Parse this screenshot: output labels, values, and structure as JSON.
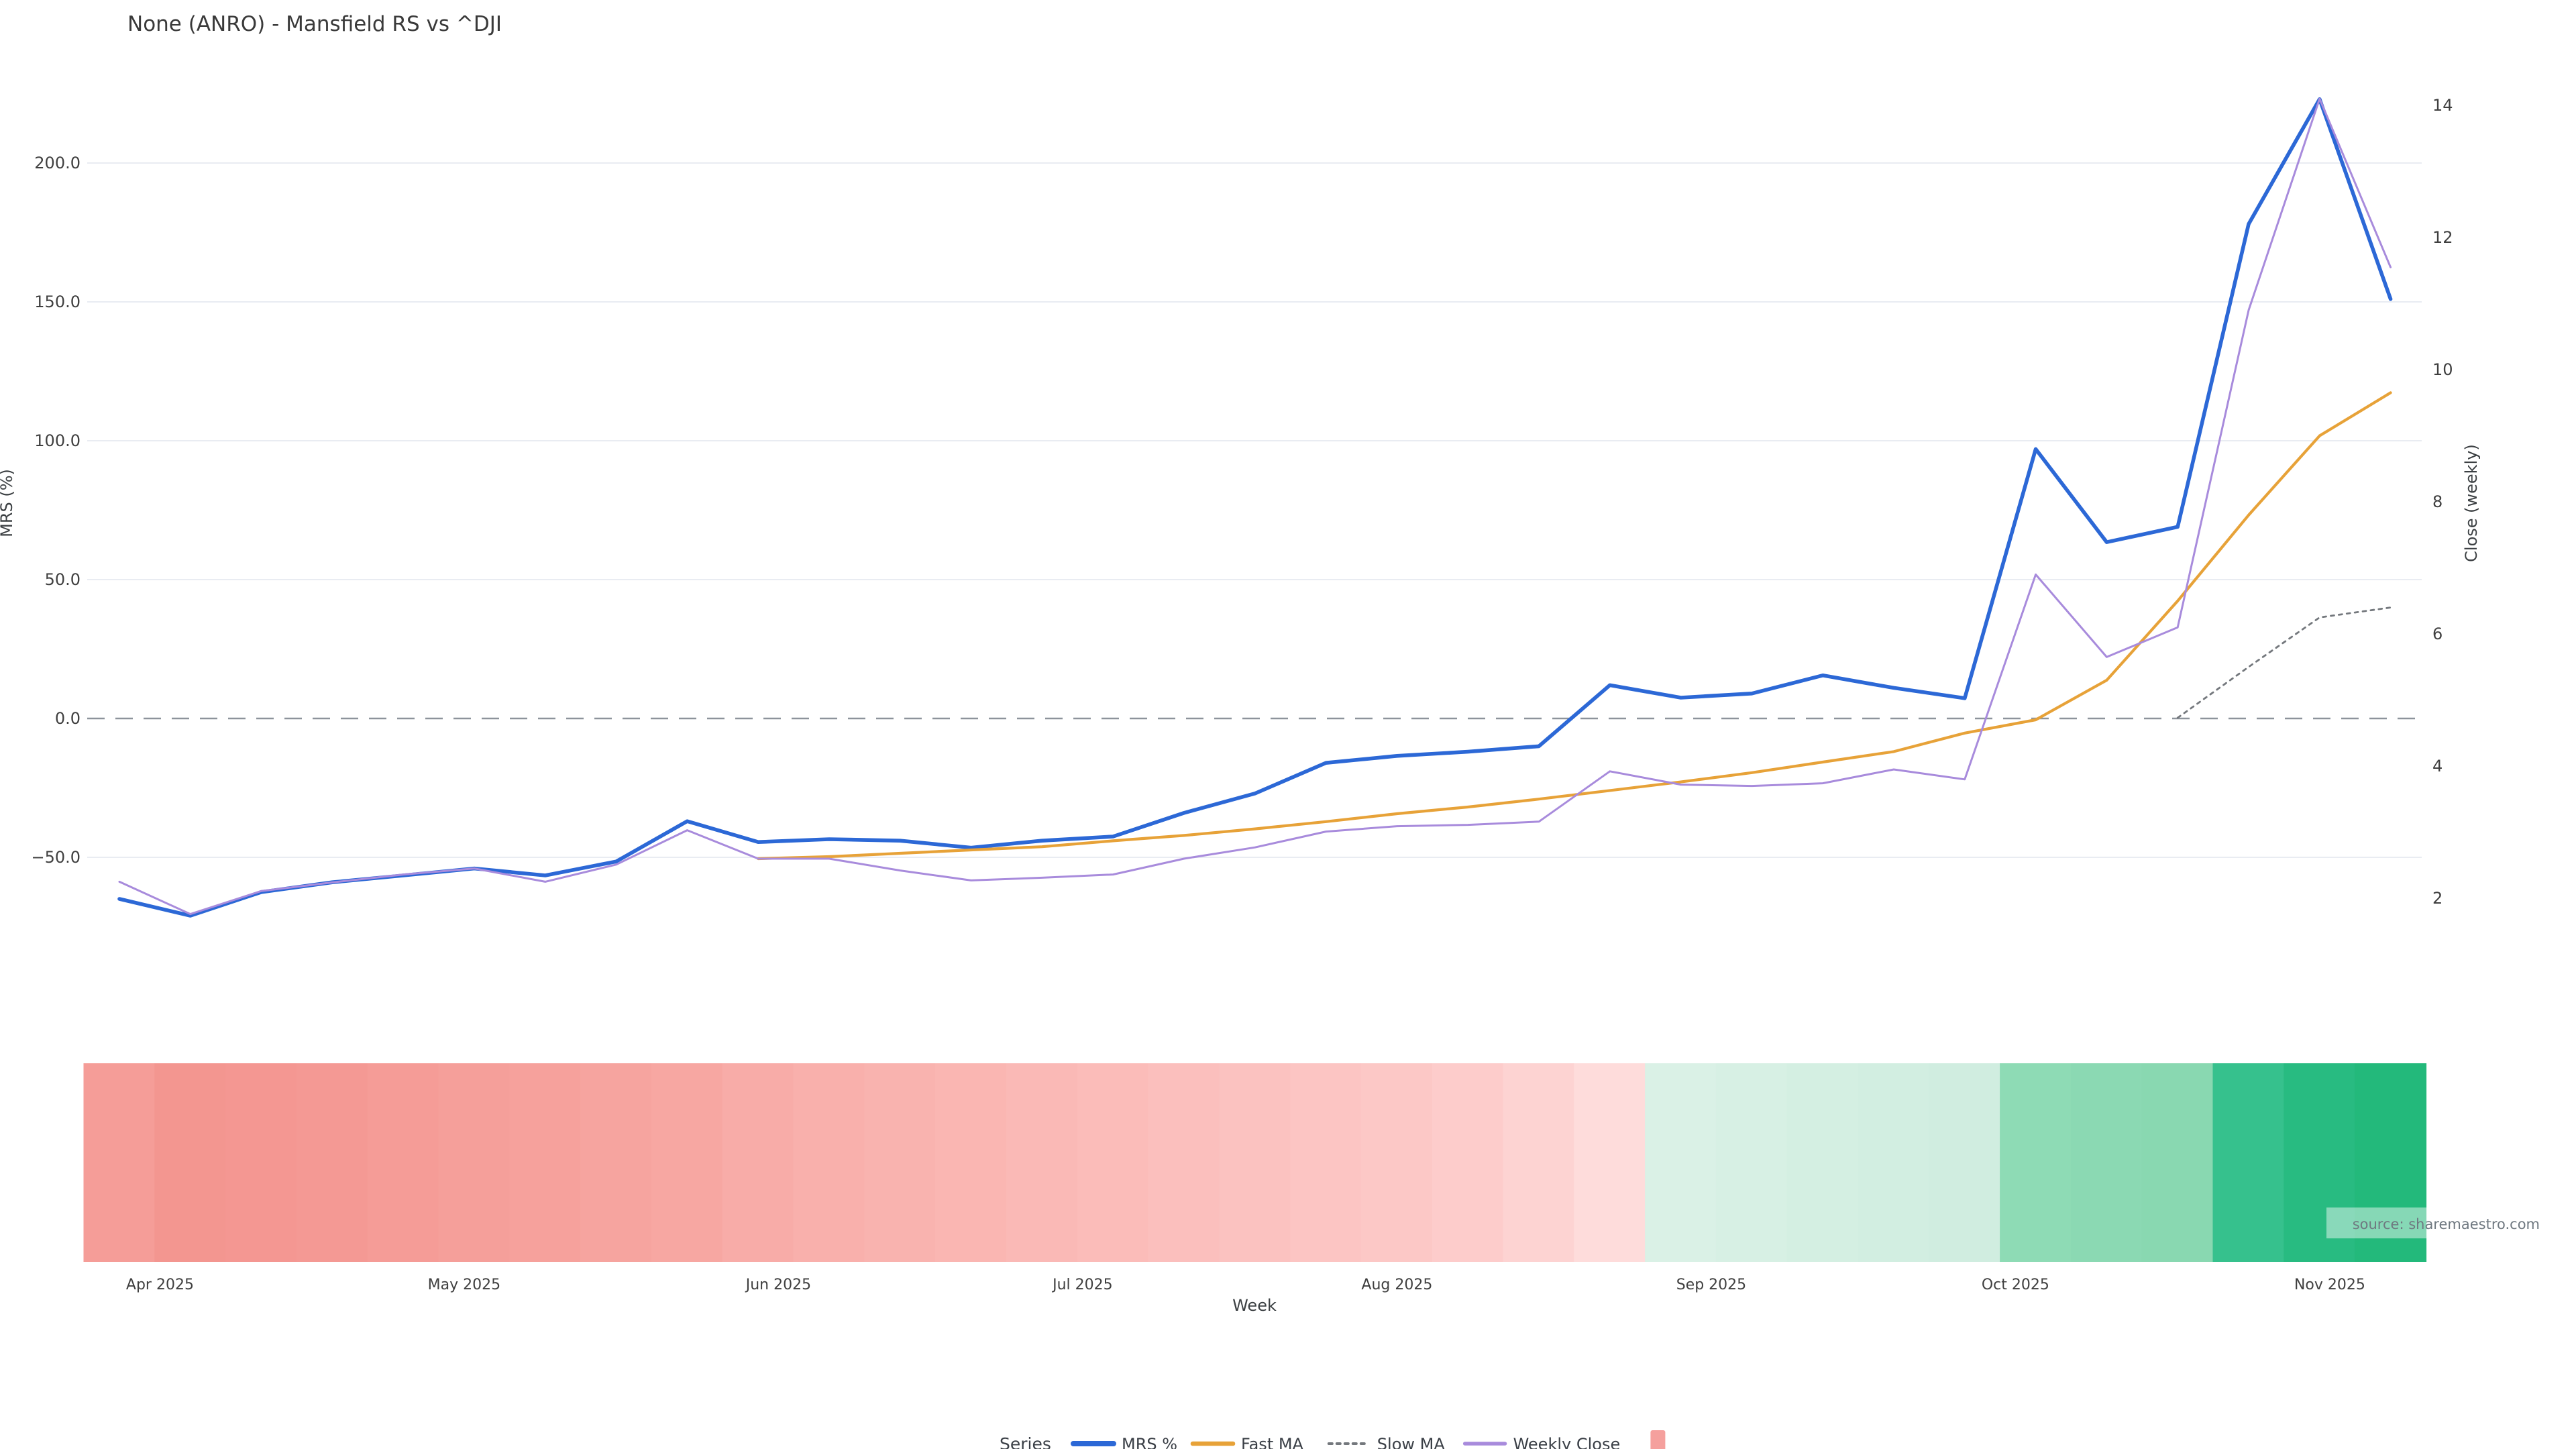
{
  "chart_data": {
    "type": "line",
    "title": "None (ANRO) - Mansfield RS vs ^DJI",
    "xlabel": "Week",
    "watermark": "source: sharemaestro.com",
    "background_color": "#ffffff",
    "gridline_color": "#e9ecf2",
    "zero_line": {
      "value": 0.0,
      "axis": "left",
      "color": "#8d939b",
      "style": "dashed"
    },
    "left_axis": {
      "label": "MRS (%)",
      "range": [
        -80,
        240
      ],
      "ticks": [
        {
          "value": 200,
          "label": "200.0"
        },
        {
          "value": 150,
          "label": "150.0"
        },
        {
          "value": 100,
          "label": "100.0"
        },
        {
          "value": 50,
          "label": "50.0"
        },
        {
          "value": 0,
          "label": "0.0"
        },
        {
          "value": -50,
          "label": "−50.0"
        }
      ]
    },
    "right_axis": {
      "label": "Close (weekly)",
      "range": [
        1.3,
        14.6
      ],
      "ticks": [
        {
          "value": 14,
          "label": "14"
        },
        {
          "value": 12,
          "label": "12"
        },
        {
          "value": 10,
          "label": "10"
        },
        {
          "value": 8,
          "label": "8"
        },
        {
          "value": 6,
          "label": "6"
        },
        {
          "value": 4,
          "label": "4"
        },
        {
          "value": 2,
          "label": "2"
        }
      ]
    },
    "x_dates": [
      "2025-03-28",
      "2025-04-04",
      "2025-04-11",
      "2025-04-18",
      "2025-04-25",
      "2025-05-02",
      "2025-05-09",
      "2025-05-16",
      "2025-05-23",
      "2025-05-30",
      "2025-06-06",
      "2025-06-13",
      "2025-06-20",
      "2025-06-27",
      "2025-07-04",
      "2025-07-11",
      "2025-07-18",
      "2025-07-25",
      "2025-08-01",
      "2025-08-08",
      "2025-08-15",
      "2025-08-22",
      "2025-08-29",
      "2025-09-05",
      "2025-09-12",
      "2025-09-19",
      "2025-09-26",
      "2025-10-03",
      "2025-10-10",
      "2025-10-17",
      "2025-10-24",
      "2025-10-31",
      "2025-11-07"
    ],
    "month_ticks": [
      {
        "label": "Apr 2025",
        "date": "2025-04-01"
      },
      {
        "label": "May 2025",
        "date": "2025-05-01"
      },
      {
        "label": "Jun 2025",
        "date": "2025-06-01"
      },
      {
        "label": "Jul 2025",
        "date": "2025-07-01"
      },
      {
        "label": "Aug 2025",
        "date": "2025-08-01"
      },
      {
        "label": "Sep 2025",
        "date": "2025-09-01"
      },
      {
        "label": "Oct 2025",
        "date": "2025-10-01"
      },
      {
        "label": "Nov 2025",
        "date": "2025-11-01"
      }
    ],
    "series": [
      {
        "name": "MRS %",
        "axis": "left",
        "color": "#2c68d6",
        "width": 2.8,
        "dash": null,
        "values": [
          -65,
          -71,
          -62.5,
          -59,
          -56.5,
          -54,
          -56.5,
          -51.5,
          -37,
          -44.5,
          -43.5,
          -44,
          -46.5,
          -44,
          -42.5,
          -34,
          -27,
          -16,
          -13.5,
          -12,
          -10,
          12,
          7.5,
          9,
          15.5,
          11,
          7.3,
          97,
          63.5,
          69,
          178,
          223,
          151
        ]
      },
      {
        "name": "Fast MA",
        "axis": "right",
        "color": "#e7a238",
        "width": 2.1,
        "dash": null,
        "values": [
          null,
          null,
          null,
          null,
          null,
          null,
          null,
          null,
          null,
          2.6,
          2.63,
          2.68,
          2.73,
          2.78,
          2.87,
          2.95,
          3.05,
          3.16,
          3.28,
          3.38,
          3.5,
          3.63,
          3.76,
          3.9,
          4.06,
          4.22,
          4.5,
          4.7,
          5.3,
          6.5,
          7.8,
          9.0,
          9.65
        ]
      },
      {
        "name": "Slow MA",
        "axis": "right",
        "color": "#74787d",
        "width": 1.4,
        "dash": "2.5,3.5",
        "values": [
          null,
          null,
          null,
          null,
          null,
          null,
          null,
          null,
          null,
          null,
          null,
          null,
          null,
          null,
          null,
          null,
          null,
          null,
          null,
          null,
          null,
          null,
          null,
          null,
          null,
          null,
          null,
          null,
          null,
          4.73,
          5.5,
          6.25,
          6.4
        ]
      },
      {
        "name": "Weekly Close",
        "axis": "right",
        "color": "#a88bdc",
        "width": 1.5,
        "dash": null,
        "values": [
          2.25,
          1.76,
          2.11,
          2.24,
          2.36,
          2.45,
          2.25,
          2.51,
          3.03,
          2.6,
          2.6,
          2.42,
          2.27,
          2.31,
          2.36,
          2.6,
          2.77,
          3.01,
          3.09,
          3.11,
          3.16,
          3.92,
          3.72,
          3.7,
          3.74,
          3.95,
          3.8,
          6.9,
          5.65,
          6.1,
          10.9,
          14.1,
          11.55
        ]
      }
    ],
    "band": {
      "description": "weekly relative-strength heat band",
      "colors": [
        "#f59d98",
        "#f39690",
        "#f49792",
        "#f49994",
        "#f59c97",
        "#f59f9a",
        "#f6a19c",
        "#f6a49f",
        "#f7a7a2",
        "#f8aca8",
        "#f9b0ac",
        "#f9b3af",
        "#fab6b2",
        "#fab9b6",
        "#fbbcb9",
        "#fbbfbd",
        "#fbc2c0",
        "#fcc5c3",
        "#fcc8c6",
        "#fdcccb",
        "#fdd3d2",
        "#fedcdb",
        "#daf1e6",
        "#d7f0e4",
        "#d4efe2",
        "#d2eee1",
        "#d0ede0",
        "#8edbb5",
        "#8bd9b3",
        "#89d8b1",
        "#36c18d",
        "#28bb81",
        "#23b97b"
      ]
    },
    "legend": {
      "title": "Series",
      "swatch_color": "#f5a09d"
    }
  }
}
